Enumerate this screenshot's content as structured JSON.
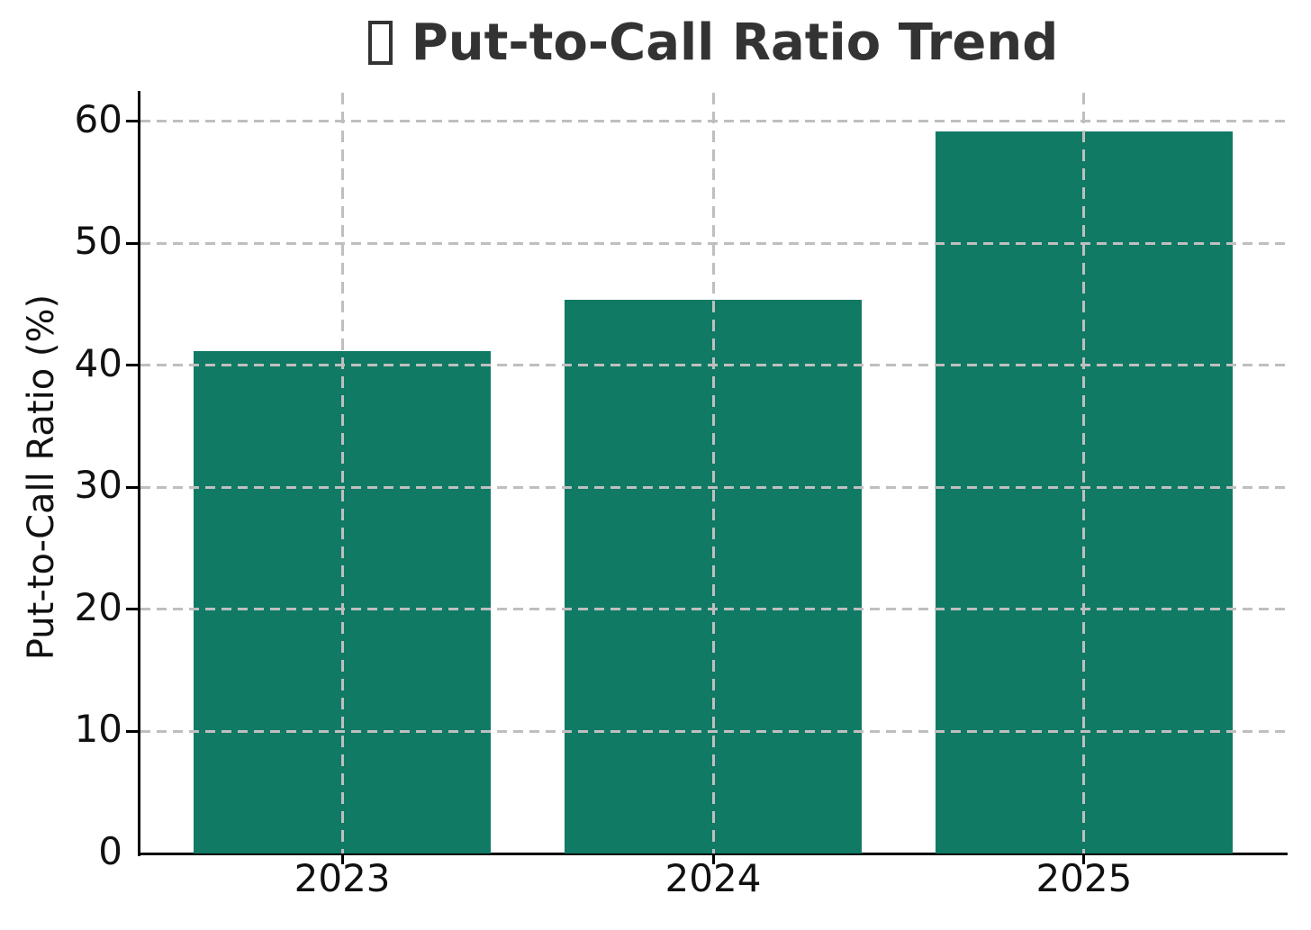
{
  "chart_data": {
    "type": "bar",
    "title": "Put-to-Call Ratio Trend",
    "title_icon": "missing-glyph-box",
    "categories": [
      "2023",
      "2024",
      "2025"
    ],
    "values": [
      41.2,
      45.4,
      59.2
    ],
    "xlabel": "",
    "ylabel": "Put-to-Call Ratio (%)",
    "yticks": [
      0,
      10,
      20,
      30,
      40,
      50,
      60
    ],
    "ylim": [
      0,
      62.35
    ],
    "xlim": [
      -0.544,
      2.544
    ],
    "bar_width_ratio": 0.8,
    "grid": true,
    "grid_style": "dashed",
    "legend": "none",
    "colors": {
      "bar": "#107a65",
      "grid": "#bfbfbf",
      "axis": "#000000",
      "title": "#333333",
      "tick_labels": "#111111",
      "background": "#ffffff"
    }
  }
}
